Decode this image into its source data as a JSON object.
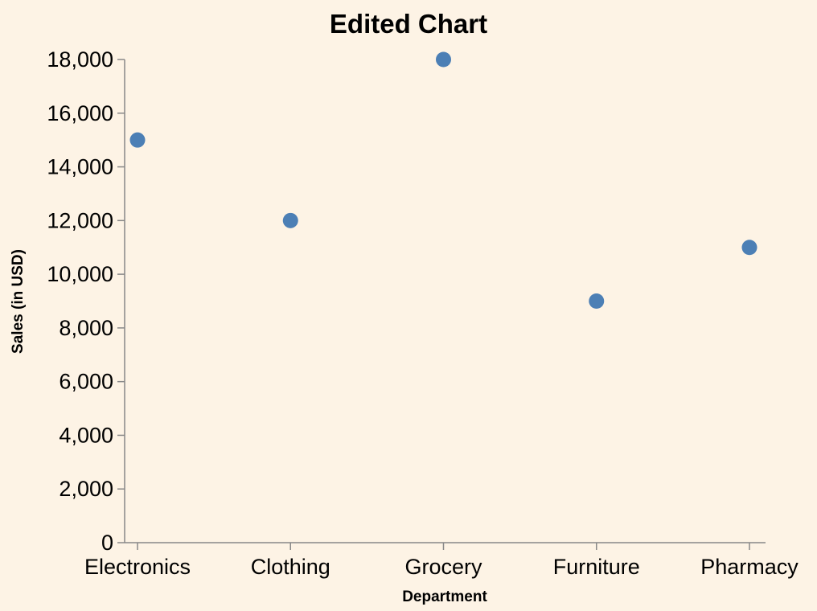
{
  "chart_data": {
    "type": "scatter",
    "title": "Edited Chart",
    "xlabel": "Department",
    "ylabel": "Sales (in USD)",
    "categories": [
      "Electronics",
      "Clothing",
      "Grocery",
      "Furniture",
      "Pharmacy"
    ],
    "values": [
      15000,
      12000,
      18000,
      9000,
      11000
    ],
    "ylim": [
      0,
      18000
    ],
    "yticks": [
      0,
      2000,
      4000,
      6000,
      8000,
      10000,
      12000,
      14000,
      16000,
      18000
    ],
    "ytick_labels": [
      "0",
      "2,000",
      "4,000",
      "6,000",
      "8,000",
      "10,000",
      "12,000",
      "14,000",
      "16,000",
      "18,000"
    ],
    "grid": false,
    "legend": "none",
    "colors": {
      "background": "#fdf3e5",
      "point": "#4c7fb5",
      "axis": "#888888"
    }
  }
}
